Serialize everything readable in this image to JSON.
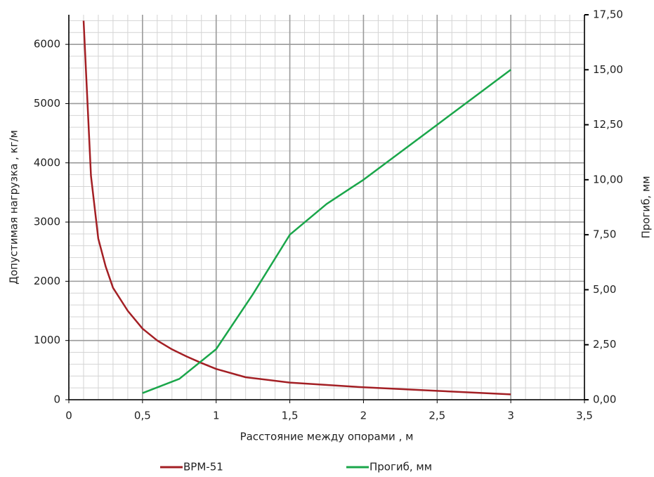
{
  "chart_data": {
    "type": "line",
    "x_label": "Расстояние между опорами , м",
    "y_label": "Допустимая нагрузка ,  кг/м",
    "y2_label": "Прогиб, мм",
    "xlim": [
      0,
      3.5
    ],
    "xticks": [
      0,
      {
        "value": 0.5,
        "label": "0,5"
      },
      1,
      {
        "value": 1.5,
        "label": "1,5"
      },
      2,
      {
        "value": 2.5,
        "label": "2,5"
      },
      3,
      {
        "value": 3.5,
        "label": "3,5"
      }
    ],
    "ylim": [
      0,
      6500
    ],
    "yticks": [
      0,
      1000,
      2000,
      3000,
      4000,
      5000,
      6000
    ],
    "y2lim": [
      0,
      17.5
    ],
    "y2ticks": [
      {
        "value": 0,
        "label": "0,00"
      },
      {
        "value": 2.5,
        "label": "2,50"
      },
      {
        "value": 5,
        "label": "5,00"
      },
      {
        "value": 7.5,
        "label": "7,50"
      },
      {
        "value": 10,
        "label": "10,00"
      },
      {
        "value": 12.5,
        "label": "12,50"
      },
      {
        "value": 15,
        "label": "15,00"
      },
      {
        "value": 17.5,
        "label": "17,50"
      }
    ],
    "grid": true,
    "legend": "bottom",
    "series": [
      {
        "name": "ВРМ-51",
        "color": "#a31f24",
        "x": [
          0.1,
          0.15,
          0.2,
          0.25,
          0.3,
          0.4,
          0.5,
          0.6,
          0.7,
          0.8,
          0.9,
          1.0,
          1.2,
          1.5,
          2.0,
          2.5,
          3.0
        ],
        "values": [
          6400,
          3780,
          2720,
          2250,
          1890,
          1500,
          1200,
          1000,
          850,
          730,
          620,
          520,
          380,
          290,
          210,
          150,
          90
        ]
      },
      {
        "name": "Прогиб, мм",
        "color": "#1aa64a",
        "axis": "y2",
        "x": [
          0.5,
          0.75,
          1.0,
          1.25,
          1.5,
          1.75,
          2.0,
          2.5,
          3.0
        ],
        "values": [
          0.3,
          0.95,
          2.3,
          4.8,
          7.5,
          8.9,
          10.0,
          12.5,
          15.0
        ]
      }
    ]
  }
}
